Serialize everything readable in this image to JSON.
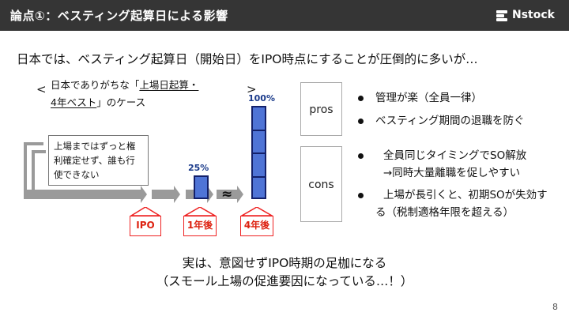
{
  "header": {
    "title": "論点①：ベスティング起算日による影響",
    "logo_text": "Nstock"
  },
  "lead": "日本では、ベスティング起算日（開始日）をIPO時点にすることが圧倒的に多いが…",
  "case": {
    "prefix": "日本でありがちな「",
    "underlined_1": "上場日起算・",
    "underlined_2": "4年ベスト",
    "suffix": "」のケース",
    "bracket_left": "<",
    "bracket_right": ">"
  },
  "note": {
    "lines": [
      "上場まではずっと権",
      "利確定せず、誰も行",
      "使できない"
    ]
  },
  "bars": [
    {
      "label": "25%",
      "fraction": 0.25
    },
    {
      "label": "100%",
      "fraction": 1.0
    }
  ],
  "break_mark": "≈",
  "labels": [
    "IPO",
    "1年後",
    "4年後"
  ],
  "pros": {
    "title": "pros",
    "items": [
      "管理が楽（全員一律）",
      "ベスティング期間の退職を防ぐ"
    ]
  },
  "cons": {
    "title": "cons",
    "items": [
      [
        "全員同じタイミングでSO解放",
        "→同時大量離職を促しやすい"
      ],
      [
        "上場が長引くと、初期SOが失効す",
        "る（税制適格年限を超える）"
      ]
    ]
  },
  "conclusion": [
    "実は、意図せずIPO時期の足枷になる",
    "（スモール上場の促進要因になっている…！）"
  ],
  "page_number": "8",
  "colors": {
    "header_bg": "#353535",
    "bar_fill": "#4f74d6",
    "bar_border": "#13206a",
    "label_red": "#d21",
    "timeline_gray": "#9a9a9a"
  }
}
